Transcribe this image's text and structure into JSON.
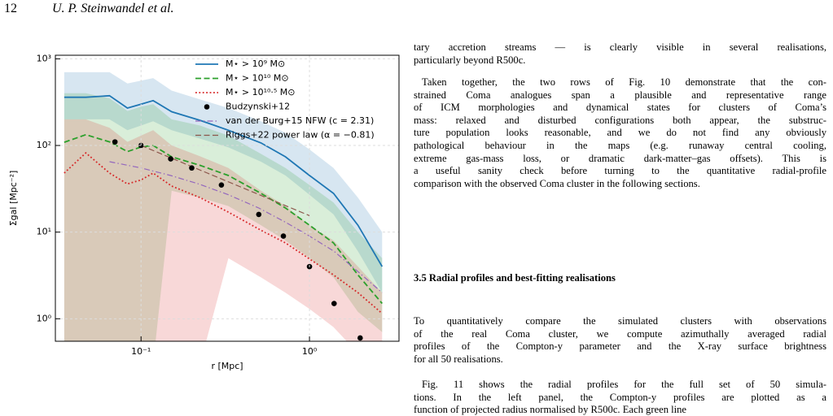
{
  "header": {
    "page": "12",
    "authors": "U. P. Steinwandel et al."
  },
  "chart_data": {
    "type": "line",
    "xscale": "log",
    "yscale": "log",
    "xlabel": "r [Mpc]",
    "ylabel": "Σgal [Mpc⁻²]",
    "xlim": [
      0.031,
      3.4
    ],
    "ylim": [
      0.55,
      1100
    ],
    "xticks": [
      {
        "value": 0.1,
        "label": "10⁻¹"
      },
      {
        "value": 1,
        "label": "10⁰"
      }
    ],
    "yticks": [
      {
        "value": 1,
        "label": "10⁰"
      },
      {
        "value": 10,
        "label": "10¹"
      },
      {
        "value": 100,
        "label": "10²"
      },
      {
        "value": 1000,
        "label": "10³"
      }
    ],
    "grid": true,
    "legend": "upper right",
    "x": [
      0.035,
      0.047,
      0.065,
      0.083,
      0.1,
      0.118,
      0.152,
      0.224,
      0.33,
      0.515,
      0.72,
      1.0,
      1.39,
      1.94,
      2.7
    ],
    "series": [
      {
        "name": "M⋆ > 10⁹ M⊙",
        "color": "#1f77b4",
        "linestyle": "solid",
        "values": [
          360,
          360,
          375,
          270,
          300,
          330,
          245,
          195,
          150,
          107,
          74,
          45,
          28,
          12,
          4
        ],
        "band_upper": [
          700,
          700,
          700,
          520,
          560,
          600,
          430,
          340,
          270,
          190,
          140,
          90,
          55,
          25,
          10
        ],
        "band_lower": [
          200,
          200,
          200,
          150,
          170,
          190,
          150,
          120,
          95,
          65,
          45,
          27,
          16,
          6,
          2
        ]
      },
      {
        "name": "M⋆ > 10¹⁰ M⊙",
        "color": "#2ca02c",
        "linestyle": "dashed",
        "values": [
          109,
          133,
          110,
          85,
          96,
          100,
          74,
          59,
          45,
          28,
          19,
          12,
          7.5,
          3.2,
          1.5
        ],
        "band_upper": [
          400,
          400,
          350,
          250,
          280,
          300,
          200,
          170,
          130,
          80,
          55,
          35,
          22,
          10,
          5
        ],
        "band_lower": [
          0.3,
          0.3,
          0.3,
          0.3,
          0.3,
          0.3,
          30,
          25,
          20,
          12,
          8,
          5,
          3,
          1.2,
          0.7
        ]
      },
      {
        "name": "M⋆ > 10¹⁰·⁵ M⊙",
        "color": "#d62728",
        "linestyle": "dotted",
        "values": [
          48,
          82,
          48,
          36,
          40,
          48,
          34,
          25,
          17,
          10.5,
          7.5,
          4.9,
          3.2,
          2.0,
          1.15
        ],
        "band_upper": [
          200,
          200,
          160,
          110,
          130,
          150,
          100,
          75,
          55,
          30,
          20,
          12,
          8,
          4,
          2
        ],
        "band_lower": [
          0.3,
          0.3,
          0.3,
          0.3,
          0.3,
          0.3,
          0.3,
          0.3,
          5,
          3,
          2,
          1.3,
          0.8,
          0.4,
          0.3
        ]
      }
    ],
    "points": {
      "name": "Budzynski+12",
      "color": "#000000",
      "x": [
        0.07,
        0.1,
        0.15,
        0.2,
        0.3,
        0.5,
        0.7,
        1.0,
        1.4,
        2.0
      ],
      "values": [
        110,
        100,
        70,
        55,
        35,
        16,
        9,
        4,
        1.5,
        0.6
      ]
    },
    "models": [
      {
        "name": "van der Burg+15 NFW (c = 2.31)",
        "color": "#9467bd",
        "linestyle": "dashdot",
        "x": [
          0.065,
          0.1,
          0.15,
          0.22,
          0.33,
          0.5,
          0.72,
          1.0,
          1.4,
          1.94,
          2.7
        ],
        "values": [
          65,
          55,
          45,
          36,
          27,
          19,
          13,
          9,
          6,
          3.5,
          2.0
        ]
      },
      {
        "name": "Riggs+22 power law (α = −0.81)",
        "color": "#8c564b",
        "linestyle": "dashed",
        "x": [
          0.1,
          1.0
        ],
        "values": [
          100,
          15.5
        ]
      }
    ]
  },
  "text": {
    "paragraphs": [
      {
        "lines": [
          "tary accretion streams — is clearly visible in several realisations,",
          "particularly beyond R500c."
        ]
      },
      {
        "lines": [
          "Taken together, the two rows of Fig. 10 demonstrate that the con-",
          "strained Coma analogues span a plausible and representative range",
          "of ICM morphologies and dynamical states for clusters of Coma’s",
          "mass: relaxed and disturbed configurations both appear, the substruc-",
          "ture population looks reasonable, and we do not find any obviously",
          "pathological behaviour in the maps (e.g. runaway central cooling,",
          "extreme gas-mass loss, or dramatic dark-matter–gas offsets). This is",
          "a useful sanity check before turning to the quantitative radial-profile",
          "comparison with the observed Coma cluster in the following sections."
        ]
      },
      {
        "lines": [
          "To quantitatively compare the simulated clusters with observations",
          "of the real Coma cluster, we compute azimuthally averaged radial",
          "profiles of the Compton-y parameter and the X-ray surface brightness",
          "for all 50 realisations."
        ]
      },
      {
        "lines": [
          "Fig. 11 shows the radial profiles for the full set of 50 simula-",
          "tions. In the left panel, the Compton-y profiles are plotted as a",
          "function of projected radius normalised by R500c. Each green line"
        ]
      }
    ],
    "heading": "3.5 Radial profiles and best-fitting realisations"
  }
}
